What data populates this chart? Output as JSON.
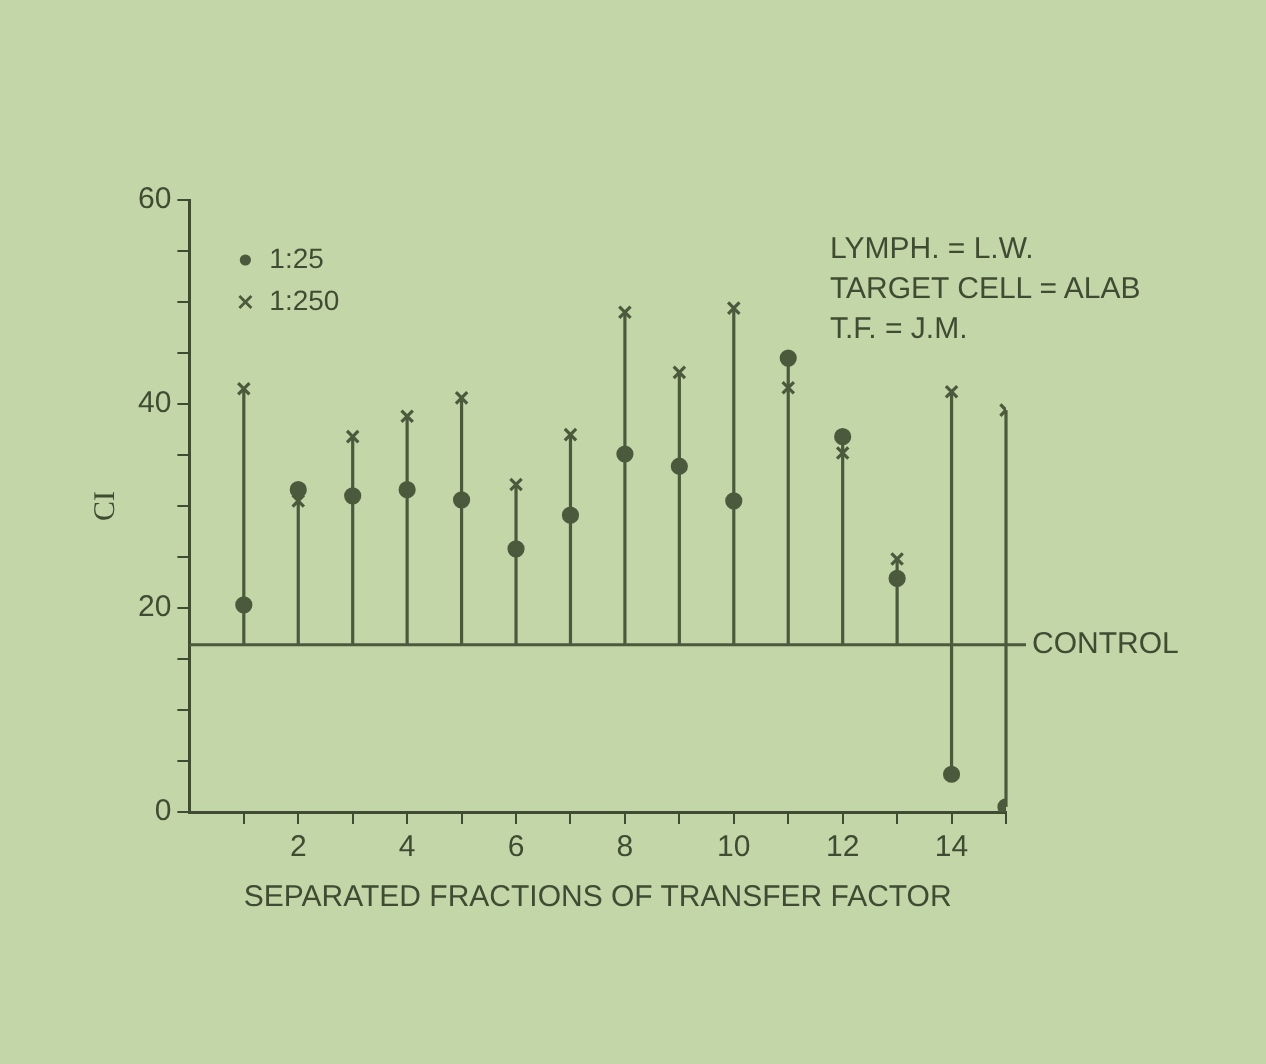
{
  "chart_data": {
    "type": "scatter",
    "xlabel": "SEPARATED FRACTIONS OF TRANSFER FACTOR",
    "ylabel": "CI",
    "x": [
      1,
      2,
      3,
      4,
      5,
      6,
      7,
      8,
      9,
      10,
      11,
      12,
      13,
      14,
      15
    ],
    "series": [
      {
        "name": "1:25",
        "color": "#4b5a3c",
        "marker": "circle",
        "values": [
          20.3,
          31.6,
          31.0,
          31.6,
          30.6,
          25.8,
          29.1,
          35.1,
          33.9,
          30.5,
          44.5,
          36.8,
          22.9,
          3.7,
          0.5
        ],
        "errors": [
          null,
          [
            16.4,
            31.6
          ],
          null,
          null,
          null,
          null,
          null,
          null,
          null,
          null,
          [
            16.4,
            44.5
          ],
          [
            16.4,
            36.8
          ],
          null,
          [
            3.7,
            16.4
          ],
          [
            0.5,
            16.4
          ]
        ]
      },
      {
        "name": "1:250",
        "color": "#4b5a3c",
        "marker": "cross",
        "values": [
          41.5,
          30.5,
          36.8,
          38.8,
          40.6,
          32.1,
          37.0,
          49.0,
          43.1,
          49.4,
          41.6,
          35.2,
          24.8,
          41.2,
          39.4
        ],
        "errors": [
          [
            16.4,
            41.5
          ],
          null,
          [
            16.4,
            36.8
          ],
          [
            16.4,
            38.8
          ],
          [
            16.4,
            40.6
          ],
          [
            16.4,
            32.1
          ],
          [
            16.4,
            37.0
          ],
          [
            16.4,
            49.0
          ],
          [
            16.4,
            43.1
          ],
          [
            16.4,
            49.4
          ],
          null,
          null,
          [
            16.4,
            24.8
          ],
          [
            16.4,
            41.2
          ],
          [
            16.4,
            39.4
          ]
        ]
      }
    ],
    "xlim": [
      0,
      15
    ],
    "xticks": [
      {
        "value": 1,
        "label": null
      },
      2,
      {
        "value": 3,
        "label": null
      },
      4,
      {
        "value": 5,
        "label": null
      },
      6,
      {
        "value": 7,
        "label": null
      },
      8,
      {
        "value": 9,
        "label": null
      },
      10,
      {
        "value": 11,
        "label": null
      },
      12,
      {
        "value": 13,
        "label": null
      },
      14,
      {
        "value": 15,
        "label": null
      }
    ],
    "ylim": [
      0,
      60
    ],
    "yticks": [
      0,
      {
        "value": 5,
        "label": null
      },
      {
        "value": 10,
        "label": null
      },
      {
        "value": 15,
        "label": null
      },
      20,
      {
        "value": 25,
        "label": null
      },
      {
        "value": 30,
        "label": null
      },
      {
        "value": 35,
        "label": null
      },
      40,
      {
        "value": 45,
        "label": null
      },
      {
        "value": 50,
        "label": null
      },
      {
        "value": 55,
        "label": null
      },
      60
    ],
    "ref_lines": [
      {
        "axis": "y",
        "value": 16.4,
        "label": "CONTROL",
        "color": "#4b5a3c"
      }
    ],
    "annotations": [
      "LYMPH. = L.W.",
      "TARGET CELL = ALAB",
      "T.F. = J.M."
    ],
    "legend": "top left",
    "grid": false
  }
}
